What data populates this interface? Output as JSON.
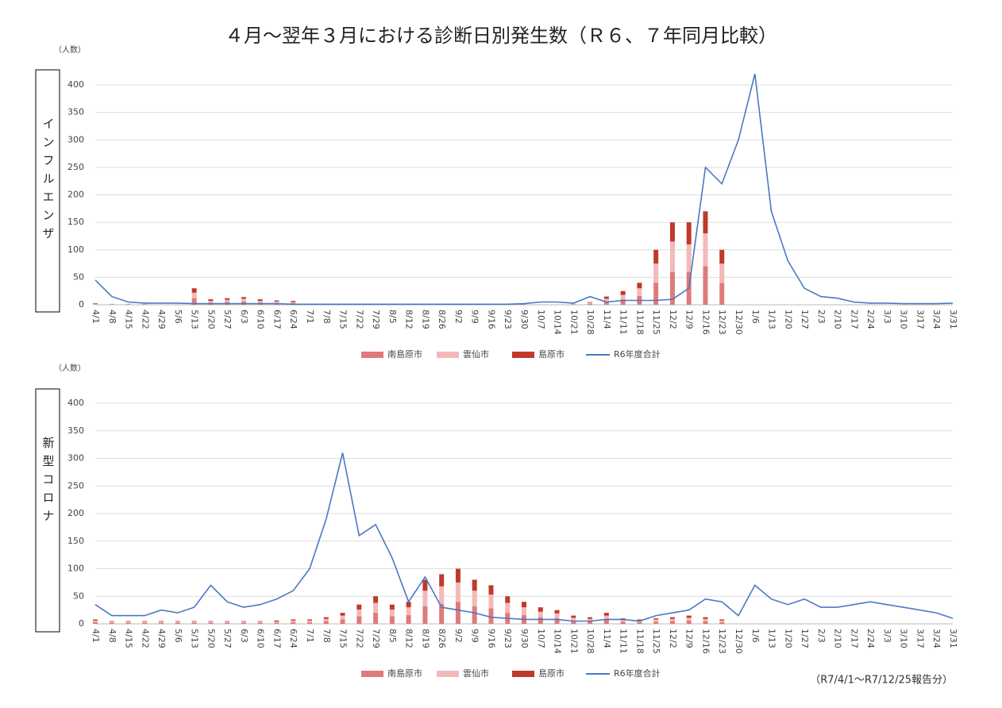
{
  "title": "４月～翌年３月における診断日別発生数（Ｒ６、７年同月比較）",
  "note": "（R7/4/1～R7/12/25報告分）",
  "chart_data": [
    {
      "type": "combo",
      "panel_label": "インフルエンザ",
      "y_label": "（人数）",
      "categories": [
        "4/1",
        "4/8",
        "4/15",
        "4/22",
        "4/29",
        "5/6",
        "5/13",
        "5/20",
        "5/27",
        "6/3",
        "6/10",
        "6/17",
        "6/24",
        "7/1",
        "7/8",
        "7/15",
        "7/22",
        "7/29",
        "8/5",
        "8/12",
        "8/19",
        "8/26",
        "9/2",
        "9/9",
        "9/16",
        "9/23",
        "9/30",
        "10/7",
        "10/14",
        "10/21",
        "10/28",
        "11/4",
        "11/11",
        "11/18",
        "11/25",
        "12/2",
        "12/9",
        "12/16",
        "12/23",
        "12/30",
        "1/6",
        "1/13",
        "1/20",
        "1/27",
        "2/3",
        "2/10",
        "2/17",
        "2/24",
        "3/3",
        "3/10",
        "3/17",
        "3/24",
        "3/31"
      ],
      "ylim": [
        0,
        400
      ],
      "yticks": [
        0,
        50,
        100,
        150,
        200,
        250,
        300,
        350,
        400
      ],
      "grid": true,
      "series": [
        {
          "name": "南島原市",
          "mark": "bar",
          "color": "#e07a7a",
          "values": [
            1,
            1,
            1,
            1,
            0,
            0,
            12,
            4,
            5,
            6,
            4,
            3,
            3,
            0,
            0,
            0,
            0,
            0,
            0,
            0,
            0,
            0,
            0,
            0,
            0,
            0,
            1,
            0,
            0,
            1,
            2,
            6,
            10,
            16,
            40,
            60,
            60,
            70,
            40,
            null,
            null,
            null,
            null,
            null,
            null,
            null,
            null,
            null,
            null,
            null,
            null,
            null,
            null
          ]
        },
        {
          "name": "雲仙市",
          "mark": "bar",
          "color": "#f3b9b9",
          "values": [
            1,
            1,
            1,
            1,
            1,
            1,
            10,
            3,
            4,
            5,
            3,
            3,
            2,
            1,
            1,
            1,
            1,
            1,
            1,
            1,
            1,
            1,
            1,
            1,
            1,
            1,
            1,
            1,
            1,
            1,
            2,
            5,
            8,
            14,
            35,
            55,
            50,
            60,
            35,
            null,
            null,
            null,
            null,
            null,
            null,
            null,
            null,
            null,
            null,
            null,
            null,
            null,
            null
          ]
        },
        {
          "name": "島原市",
          "mark": "bar",
          "color": "#c0392b",
          "values": [
            1,
            0,
            0,
            0,
            0,
            0,
            8,
            3,
            3,
            3,
            3,
            2,
            2,
            0,
            0,
            0,
            0,
            0,
            0,
            0,
            0,
            0,
            0,
            0,
            0,
            0,
            0,
            0,
            0,
            0,
            1,
            4,
            7,
            10,
            25,
            35,
            40,
            40,
            25,
            null,
            null,
            null,
            null,
            null,
            null,
            null,
            null,
            null,
            null,
            null,
            null,
            null,
            null
          ]
        },
        {
          "name": "R6年度合計",
          "mark": "line",
          "color": "#4a78c2",
          "values": [
            45,
            15,
            5,
            3,
            3,
            3,
            2,
            2,
            2,
            2,
            2,
            2,
            1,
            1,
            1,
            1,
            1,
            1,
            1,
            1,
            1,
            1,
            1,
            1,
            1,
            1,
            2,
            5,
            5,
            3,
            15,
            5,
            8,
            8,
            8,
            10,
            30,
            250,
            220,
            300,
            420,
            170,
            80,
            30,
            15,
            12,
            5,
            3,
            3,
            2,
            2,
            2,
            3
          ]
        }
      ]
    },
    {
      "type": "combo",
      "panel_label": "新型コロナ",
      "y_label": "（人数）",
      "categories": [
        "4/1",
        "4/8",
        "4/15",
        "4/22",
        "4/29",
        "5/6",
        "5/13",
        "5/20",
        "5/27",
        "6/3",
        "6/10",
        "6/17",
        "6/24",
        "7/1",
        "7/8",
        "7/15",
        "7/22",
        "7/29",
        "8/5",
        "8/12",
        "8/19",
        "8/26",
        "9/2",
        "9/9",
        "9/16",
        "9/23",
        "9/30",
        "10/7",
        "10/14",
        "10/21",
        "10/28",
        "11/4",
        "11/11",
        "11/18",
        "11/25",
        "12/2",
        "12/9",
        "12/16",
        "12/23",
        "12/30",
        "1/6",
        "1/13",
        "1/20",
        "1/27",
        "2/3",
        "2/10",
        "2/17",
        "2/24",
        "3/3",
        "3/10",
        "3/17",
        "3/24",
        "3/31"
      ],
      "ylim": [
        0,
        400
      ],
      "yticks": [
        0,
        50,
        100,
        150,
        200,
        250,
        300,
        350,
        400
      ],
      "grid": true,
      "series": [
        {
          "name": "南島原市",
          "mark": "bar",
          "color": "#e07a7a",
          "values": [
            3,
            2,
            2,
            2,
            2,
            2,
            2,
            2,
            2,
            2,
            2,
            2,
            3,
            3,
            5,
            8,
            14,
            20,
            14,
            16,
            32,
            36,
            40,
            32,
            28,
            20,
            16,
            12,
            10,
            6,
            5,
            8,
            4,
            3,
            4,
            5,
            6,
            5,
            3,
            null,
            null,
            null,
            null,
            null,
            null,
            null,
            null,
            null,
            null,
            null,
            null,
            null,
            null
          ]
        },
        {
          "name": "雲仙市",
          "mark": "bar",
          "color": "#f3b9b9",
          "values": [
            3,
            2,
            2,
            2,
            2,
            2,
            2,
            2,
            2,
            2,
            2,
            2,
            3,
            3,
            4,
            7,
            12,
            18,
            12,
            14,
            28,
            32,
            35,
            28,
            25,
            18,
            14,
            10,
            9,
            5,
            4,
            7,
            4,
            3,
            4,
            4,
            5,
            4,
            3,
            null,
            null,
            null,
            null,
            null,
            null,
            null,
            null,
            null,
            null,
            null,
            null,
            null,
            null
          ]
        },
        {
          "name": "島原市",
          "mark": "bar",
          "color": "#c0392b",
          "values": [
            2,
            1,
            1,
            1,
            1,
            1,
            1,
            1,
            1,
            1,
            1,
            2,
            2,
            2,
            3,
            5,
            9,
            12,
            9,
            10,
            20,
            22,
            25,
            20,
            17,
            12,
            10,
            8,
            6,
            4,
            3,
            5,
            2,
            2,
            2,
            3,
            4,
            3,
            2,
            null,
            null,
            null,
            null,
            null,
            null,
            null,
            null,
            null,
            null,
            null,
            null,
            null,
            null
          ]
        },
        {
          "name": "R6年度合計",
          "mark": "line",
          "color": "#4a78c2",
          "values": [
            35,
            15,
            15,
            15,
            25,
            20,
            30,
            70,
            40,
            30,
            35,
            45,
            60,
            100,
            190,
            310,
            160,
            180,
            120,
            40,
            85,
            30,
            25,
            20,
            12,
            10,
            8,
            8,
            8,
            5,
            5,
            8,
            8,
            5,
            15,
            20,
            25,
            45,
            40,
            15,
            70,
            45,
            35,
            45,
            30,
            30,
            35,
            40,
            35,
            30,
            25,
            20,
            10
          ]
        }
      ]
    }
  ]
}
